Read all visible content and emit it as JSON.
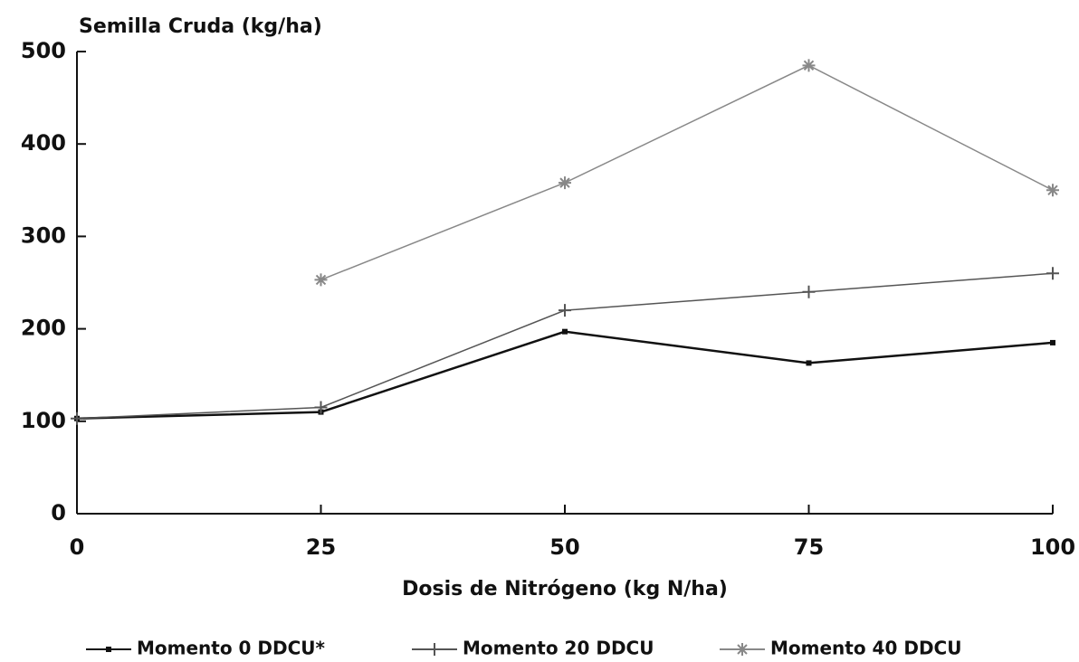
{
  "chart_data": {
    "type": "line",
    "title": "Semilla Cruda (kg/ha)",
    "x_label": "Dosis de Nitrógeno (kg N/ha)",
    "x": [
      0,
      25,
      50,
      75,
      100
    ],
    "xlim": [
      0,
      100
    ],
    "xticks": [
      0,
      25,
      50,
      75,
      100
    ],
    "ylim": [
      0,
      500
    ],
    "yticks": [
      0,
      100,
      200,
      300,
      400,
      500
    ],
    "series": [
      {
        "name": "Momento 0 DDCU*",
        "color": "#111111",
        "marker": "square",
        "values": [
          103,
          110,
          197,
          163,
          185
        ]
      },
      {
        "name": "Momento 20 DDCU",
        "color": "#555555",
        "marker": "plus",
        "values": [
          103,
          115,
          220,
          240,
          260
        ]
      },
      {
        "name": "Momento 40 DDCU",
        "color": "#888888",
        "marker": "asterisk",
        "values": [
          null,
          253,
          358,
          485,
          350
        ]
      }
    ]
  }
}
